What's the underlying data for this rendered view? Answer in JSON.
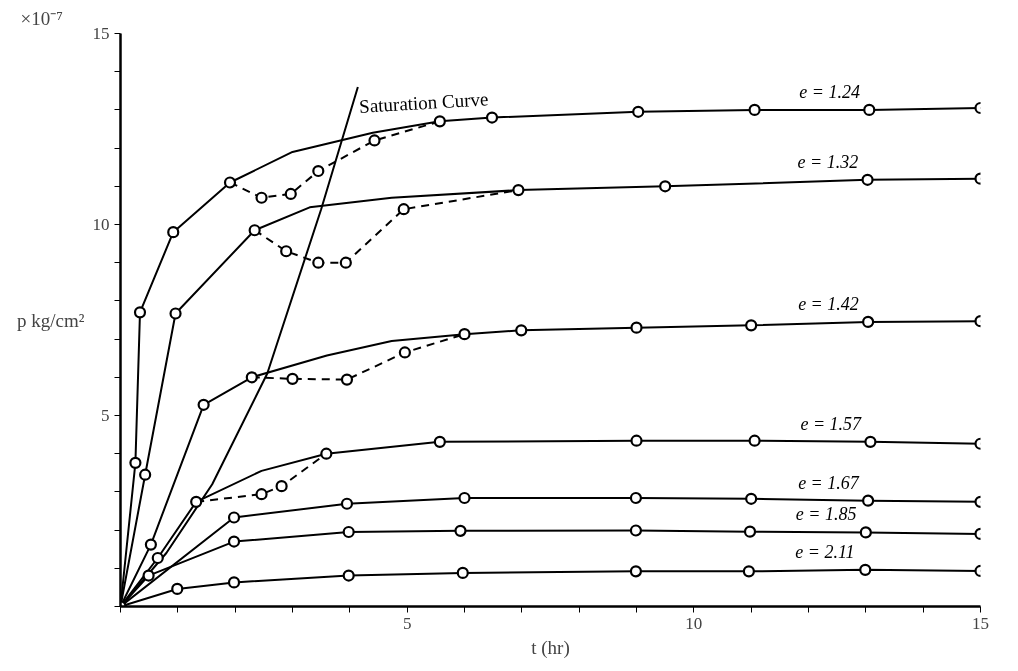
{
  "chart_data": {
    "type": "line",
    "xlabel": "t (hr)",
    "ylabel": "p kg/cm²",
    "annotations": [
      "×10⁻⁷"
    ],
    "xlim": [
      0,
      15
    ],
    "ylim": [
      0,
      15
    ],
    "xticks": [
      {
        "value": 0,
        "label": null
      },
      {
        "value": 1,
        "label": null
      },
      {
        "value": 2,
        "label": null
      },
      {
        "value": 3,
        "label": null
      },
      {
        "value": 4,
        "label": null
      },
      5,
      {
        "value": 6,
        "label": null
      },
      {
        "value": 7,
        "label": null
      },
      {
        "value": 8,
        "label": null
      },
      {
        "value": 9,
        "label": null
      },
      10,
      {
        "value": 11,
        "label": null
      },
      {
        "value": 12,
        "label": null
      },
      {
        "value": 13,
        "label": null
      },
      {
        "value": 14,
        "label": null
      },
      15
    ],
    "yticks": [
      {
        "value": 0,
        "label": null
      },
      {
        "value": 1,
        "label": null
      },
      {
        "value": 2,
        "label": null
      },
      {
        "value": 3,
        "label": null
      },
      {
        "value": 4,
        "label": null
      },
      5,
      {
        "value": 6,
        "label": null
      },
      {
        "value": 7,
        "label": null
      },
      {
        "value": 8,
        "label": null
      },
      {
        "value": 9,
        "label": null
      },
      10,
      {
        "value": 11,
        "label": null
      },
      {
        "value": 12,
        "label": null
      },
      {
        "value": 13,
        "label": null
      },
      {
        "value": 14,
        "label": null
      },
      15
    ],
    "grid": false,
    "series": [
      {
        "name": "Saturation Curve",
        "type": "line",
        "color": "#000000",
        "line_style": "solid",
        "marker": "none",
        "x": [
          0,
          0.8,
          1.6,
          2.56,
          3.5,
          4.14
        ],
        "values": [
          0,
          1.4,
          3.2,
          6.1,
          10.4,
          13.6
        ]
      },
      {
        "name": "e = 1.24",
        "type": "line",
        "color": "#000000",
        "line_style": "solid",
        "marker": "none",
        "x": [
          0,
          0.26,
          0.34,
          0.92,
          1.91,
          3.0,
          4.4,
          5.57,
          6.48,
          9.03,
          11.06,
          13.06,
          15.0
        ],
        "values": [
          0,
          3.76,
          7.7,
          9.8,
          11.1,
          11.9,
          12.4,
          12.7,
          12.8,
          12.95,
          13.0,
          13.0,
          13.05
        ]
      },
      {
        "type": "line",
        "color": "#000000",
        "line_style": "dashed",
        "marker": "circle",
        "x": [
          1.91,
          2.46,
          2.97,
          3.45,
          4.43,
          5.57
        ],
        "values": [
          11.1,
          10.7,
          10.8,
          11.4,
          12.2,
          12.7
        ]
      },
      {
        "type": "scatter",
        "color": "#000000",
        "marker": "circle",
        "x": [
          0.26,
          0.34,
          0.92,
          6.48,
          9.03,
          11.06,
          13.06,
          15.0
        ],
        "values": [
          3.76,
          7.7,
          9.8,
          12.8,
          12.95,
          13.0,
          13.0,
          13.05
        ]
      },
      {
        "name": "e = 1.32",
        "type": "line",
        "color": "#000000",
        "line_style": "solid",
        "marker": "none",
        "x": [
          0,
          0.43,
          0.96,
          2.34,
          3.3,
          4.73,
          6.94,
          9.5,
          13.03,
          15.0
        ],
        "values": [
          0,
          3.45,
          7.67,
          9.85,
          10.45,
          10.7,
          10.9,
          11.0,
          11.17,
          11.2
        ]
      },
      {
        "type": "line",
        "color": "#000000",
        "line_style": "dashed",
        "marker": "circle",
        "x": [
          2.34,
          2.89,
          3.45,
          3.93,
          4.94,
          6.94
        ],
        "values": [
          9.85,
          9.3,
          9.0,
          9.0,
          10.4,
          10.9
        ]
      },
      {
        "type": "scatter",
        "color": "#000000",
        "marker": "circle",
        "x": [
          0.43,
          0.96,
          9.5,
          13.03,
          15.0
        ],
        "values": [
          3.45,
          7.67,
          11.0,
          11.17,
          11.2
        ]
      },
      {
        "name": "e = 1.42",
        "type": "line",
        "color": "#000000",
        "line_style": "solid",
        "marker": "none",
        "x": [
          0,
          0.53,
          1.45,
          2.29,
          3.6,
          4.73,
          6.0,
          6.99,
          9.0,
          11.0,
          13.04,
          15.0
        ],
        "values": [
          0,
          1.62,
          5.28,
          6.0,
          6.57,
          6.95,
          7.13,
          7.23,
          7.3,
          7.36,
          7.45,
          7.47
        ]
      },
      {
        "type": "line",
        "color": "#000000",
        "line_style": "dashed",
        "marker": "circle",
        "x": [
          2.29,
          3.0,
          3.95,
          4.96,
          6.0
        ],
        "values": [
          6.0,
          5.96,
          5.94,
          6.65,
          7.13
        ]
      },
      {
        "type": "scatter",
        "color": "#000000",
        "marker": "circle",
        "x": [
          0.53,
          1.45,
          6.99,
          9.0,
          11.0,
          13.04,
          15.0
        ],
        "values": [
          1.62,
          5.28,
          7.23,
          7.3,
          7.36,
          7.45,
          7.47
        ]
      },
      {
        "name": "e = 1.57",
        "type": "line",
        "color": "#000000",
        "line_style": "solid",
        "marker": "none",
        "x": [
          0,
          0.65,
          1.32,
          2.46,
          3.59,
          5.57,
          9.0,
          11.06,
          13.08,
          15.0
        ],
        "values": [
          0,
          1.27,
          2.74,
          3.55,
          4.0,
          4.31,
          4.34,
          4.34,
          4.31,
          4.26
        ]
      },
      {
        "type": "line",
        "color": "#000000",
        "line_style": "dashed",
        "marker": "circle",
        "x": [
          1.32,
          2.46,
          2.81,
          3.59
        ],
        "values": [
          2.74,
          2.94,
          3.15,
          4.0
        ]
      },
      {
        "type": "scatter",
        "color": "#000000",
        "marker": "circle",
        "x": [
          0.65,
          5.57,
          9.0,
          11.06,
          13.08,
          15.0
        ],
        "values": [
          1.27,
          4.31,
          4.34,
          4.34,
          4.31,
          4.26
        ]
      },
      {
        "name": "e = 1.67",
        "type": "line",
        "color": "#000000",
        "line_style": "solid",
        "marker": "circle",
        "x": [
          0,
          1.98,
          3.95,
          6.0,
          8.99,
          11.0,
          13.04,
          15.0
        ],
        "values": [
          0,
          2.33,
          2.69,
          2.84,
          2.84,
          2.82,
          2.77,
          2.74
        ]
      },
      {
        "name": "e = 1.85",
        "type": "line",
        "color": "#000000",
        "line_style": "solid",
        "marker": "circle",
        "x": [
          0,
          0.49,
          1.98,
          3.98,
          5.93,
          8.99,
          10.98,
          13.0,
          15.0
        ],
        "values": [
          0,
          0.81,
          1.7,
          1.95,
          1.98,
          1.99,
          1.96,
          1.94,
          1.9
        ]
      },
      {
        "name": "e = 2.11",
        "type": "line",
        "color": "#000000",
        "line_style": "solid",
        "marker": "circle",
        "x": [
          0,
          0.99,
          1.98,
          3.98,
          5.97,
          8.99,
          10.96,
          12.99,
          15.0
        ],
        "values": [
          0,
          0.46,
          0.63,
          0.81,
          0.88,
          0.92,
          0.92,
          0.96,
          0.93
        ]
      }
    ]
  }
}
